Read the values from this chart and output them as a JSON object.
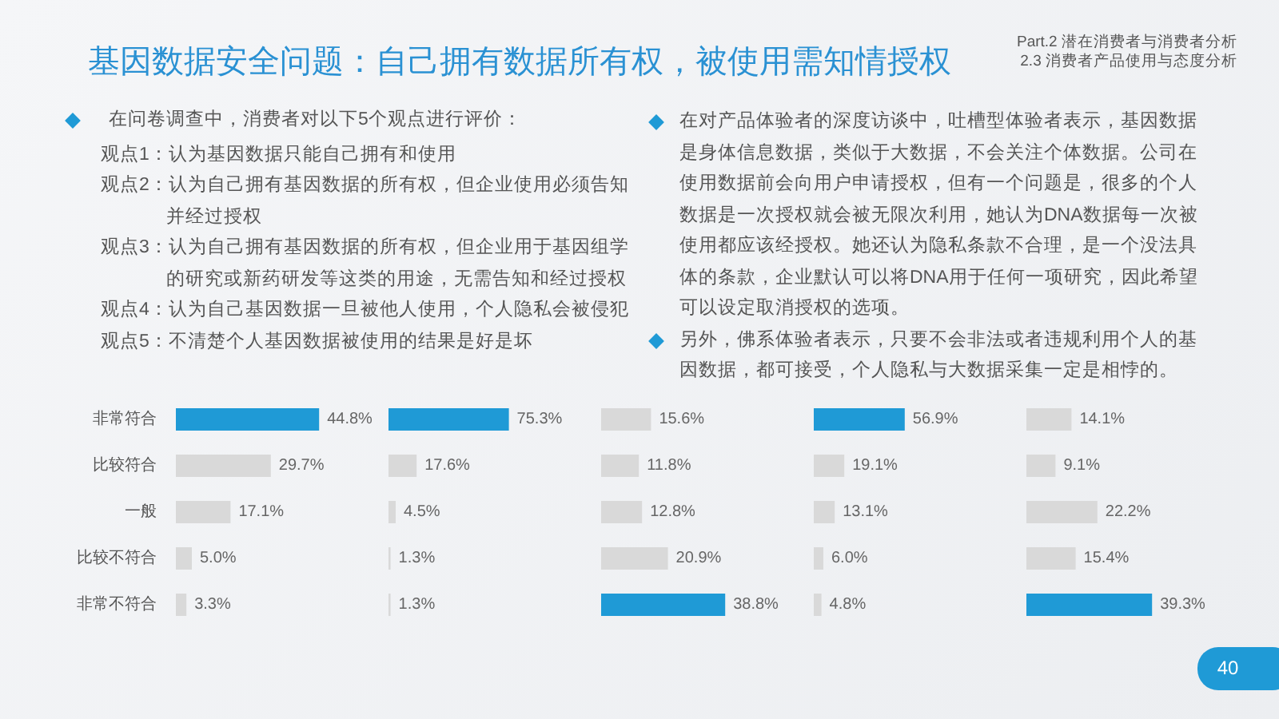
{
  "chart_data": [
    {
      "type": "other",
      "title": "基因数据安全问题：自己拥有数据所有权，被使用需知情授权",
      "subtitle": "Part.2 潜在消费者与消费者分析\n2.3 消费者产品使用与态度分析",
      "annotations": [
        "在问卷调查中，消费者对以下5个观点进行评价：",
        "观点1：认为基因数据只能自己拥有和使用",
        "观点2：认为自己拥有基因数据的所有权，但企业使用必须告知并经过授权",
        "观点3：认为自己拥有基因数据的所有权，但企业用于基因组学的研究或新药研发等这类的用途，无需告知和经过授权",
        "观点4：认为自己基因数据一旦被他人使用，个人隐私会被侵犯",
        "观点5：不清楚个人基因数据被使用的结果是好是坏",
        "在对产品体验者的深度访谈中，吐槽型体验者表示，基因数据是身体信息数据，类似于大数据，不会关注个体数据。公司在使用数据前会向用户申请授权，但有一个问题是，很多的个人数据是一次授权就会被无限次利用，她认为DNA数据每一次被使用都应该经授权。她还认为隐私条款不合理，是一个没法具体的条款，企业默认可以将DNA用于任何一项研究，因此希望可以设定取消授权的选项。",
        "另外，佛系体验者表示，只要不会非法或者违规利用个人的基因数据，都可接受，个人隐私与大数据采集一定是相悖的。",
        "40"
      ]
    },
    {
      "type": "bar",
      "orientation": "horizontal",
      "categories": [
        "非常符合",
        "比较符合",
        "一般",
        "比较不符合",
        "非常不符合"
      ],
      "values": [
        44.8,
        29.7,
        17.1,
        5.0,
        3.3
      ],
      "value_labels": [
        "44.8%",
        "29.7%",
        "17.1%",
        "5.0%",
        "3.3%"
      ],
      "colors": [
        "#1f9ad6",
        "#d9d9d9",
        "#d9d9d9",
        "#d9d9d9",
        "#d9d9d9"
      ],
      "tick_labels": "y"
    },
    {
      "type": "bar",
      "orientation": "horizontal",
      "categories": [
        null,
        null,
        null,
        null,
        null
      ],
      "values": [
        75.3,
        17.6,
        4.5,
        1.3,
        1.3
      ],
      "value_labels": [
        "75.3%",
        "17.6%",
        "4.5%",
        "1.3%",
        "1.3%"
      ],
      "colors": [
        "#1f9ad6",
        "#d9d9d9",
        "#d9d9d9",
        "#d9d9d9",
        "#d9d9d9"
      ],
      "tick_labels": false
    },
    {
      "type": "bar",
      "orientation": "horizontal",
      "categories": [
        null,
        null,
        null,
        null,
        null
      ],
      "values": [
        15.6,
        11.8,
        12.8,
        20.9,
        38.8
      ],
      "value_labels": [
        "15.6%",
        "11.8%",
        "12.8%",
        "20.9%",
        "38.8%"
      ],
      "colors": [
        "#d9d9d9",
        "#d9d9d9",
        "#d9d9d9",
        "#d9d9d9",
        "#1f9ad6"
      ],
      "tick_labels": false
    },
    {
      "type": "bar",
      "orientation": "horizontal",
      "categories": [
        null,
        null,
        null,
        null,
        null
      ],
      "values": [
        56.9,
        19.1,
        13.1,
        6.0,
        4.8
      ],
      "value_labels": [
        "56.9%",
        "19.1%",
        "13.1%",
        "6.0%",
        "4.8%"
      ],
      "colors": [
        "#1f9ad6",
        "#d9d9d9",
        "#d9d9d9",
        "#d9d9d9",
        "#d9d9d9"
      ],
      "tick_labels": false
    },
    {
      "type": "bar",
      "orientation": "horizontal",
      "categories": [
        null,
        null,
        null,
        null,
        null
      ],
      "values": [
        14.1,
        9.1,
        22.2,
        15.4,
        39.3
      ],
      "value_labels": [
        "14.1%",
        "9.1%",
        "22.2%",
        "15.4%",
        "39.3%"
      ],
      "colors": [
        "#d9d9d9",
        "#d9d9d9",
        "#d9d9d9",
        "#d9d9d9",
        "#1f9ad6"
      ],
      "tick_labels": false
    }
  ]
}
